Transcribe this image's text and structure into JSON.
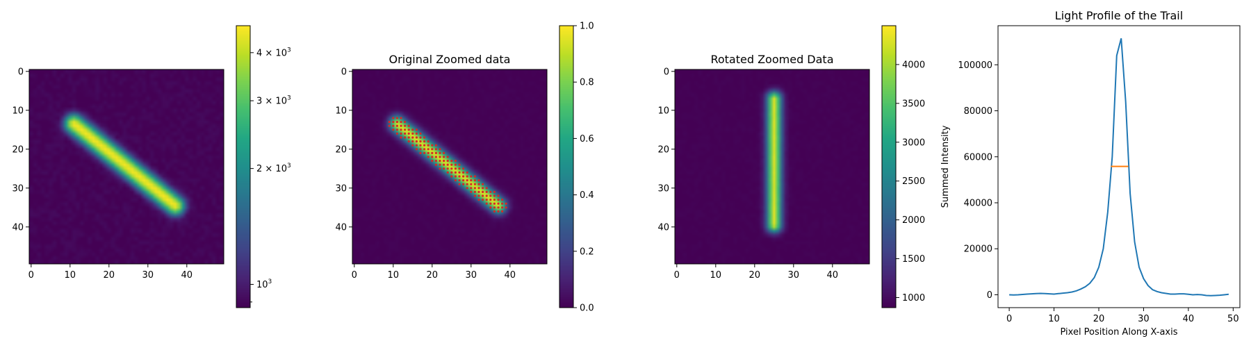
{
  "figure": {
    "panels": [
      "panel-1",
      "panel-2",
      "panel-3",
      "panel-4"
    ]
  },
  "chart_data": [
    {
      "type": "heatmap",
      "title": "",
      "extent": [
        0,
        50
      ],
      "ticks": [
        0,
        10,
        20,
        30,
        40
      ],
      "trail": {
        "start": [
          11,
          13.5
        ],
        "end": [
          37,
          34.5
        ],
        "peak": 4600,
        "background": 880,
        "sigma": 1.4
      },
      "colorbar": {
        "scale": "log",
        "range": [
          870,
          4700
        ],
        "tick_labels": [
          {
            "value": 4000,
            "base": "4 × 10",
            "exp": "3"
          },
          {
            "value": 3000,
            "base": "3 × 10",
            "exp": "3"
          },
          {
            "value": 2000,
            "base": "2 × 10",
            "exp": "3"
          },
          {
            "value": 1000,
            "base": "10",
            "exp": "3"
          }
        ]
      }
    },
    {
      "type": "heatmap",
      "title": "Original Zoomed data",
      "extent": [
        0,
        50
      ],
      "ticks": [
        0,
        10,
        20,
        30,
        40
      ],
      "trail": {
        "start": [
          11,
          13.5
        ],
        "end": [
          37,
          34.5
        ],
        "peak": 4600,
        "background": 880,
        "sigma": 1.4
      },
      "highlight_color": "#d62728",
      "colorbar": {
        "scale": "linear",
        "range": [
          0,
          1
        ],
        "tick_labels": [
          "0.0",
          "0.2",
          "0.4",
          "0.6",
          "0.8",
          "1.0"
        ]
      }
    },
    {
      "type": "heatmap",
      "title": "Rotated Zoomed Data",
      "extent": [
        0,
        50
      ],
      "ticks": [
        0,
        10,
        20,
        30,
        40
      ],
      "trail": {
        "start": [
          25,
          7
        ],
        "end": [
          25,
          39.5
        ],
        "peak": 4500,
        "background": 880,
        "sigma": 1.3
      },
      "colorbar": {
        "scale": "linear",
        "range": [
          870,
          4500
        ],
        "tick_labels": [
          "1000",
          "1500",
          "2000",
          "2500",
          "3000",
          "3500",
          "4000"
        ]
      }
    },
    {
      "type": "line",
      "title": "Light Profile of the Trail",
      "xlabel": "Pixel Position Along X-axis",
      "ylabel": "Summed Intensity",
      "xlim": [
        -2.5,
        51.5
      ],
      "ylim": [
        -5600,
        117000
      ],
      "xticks": [
        "0",
        "10",
        "20",
        "30",
        "40",
        "50"
      ],
      "yticks": [
        "0",
        "20000",
        "40000",
        "60000",
        "80000",
        "100000"
      ],
      "x": [
        0,
        1,
        2,
        3,
        4,
        5,
        6,
        7,
        8,
        9,
        10,
        11,
        12,
        13,
        14,
        15,
        16,
        17,
        18,
        19,
        20,
        21,
        22,
        23,
        24,
        25,
        26,
        27,
        28,
        29,
        30,
        31,
        32,
        33,
        34,
        35,
        36,
        37,
        38,
        39,
        40,
        41,
        42,
        43,
        44,
        45,
        46,
        47,
        48,
        49
      ],
      "series": [
        {
          "color": "#1f77b4",
          "values": [
            0,
            -100,
            0,
            150,
            300,
            400,
            500,
            600,
            500,
            400,
            300,
            500,
            700,
            900,
            1200,
            1700,
            2500,
            3500,
            5000,
            7500,
            12000,
            20000,
            36000,
            60000,
            104000,
            111500,
            84000,
            44000,
            23000,
            12000,
            7000,
            4000,
            2200,
            1400,
            900,
            600,
            300,
            300,
            400,
            400,
            200,
            0,
            100,
            0,
            -300,
            -400,
            -300,
            -200,
            0,
            200
          ]
        },
        {
          "color": "#ff7f0e",
          "x": [
            22.7,
            26.6
          ],
          "values": [
            55800,
            55800
          ]
        }
      ]
    }
  ]
}
